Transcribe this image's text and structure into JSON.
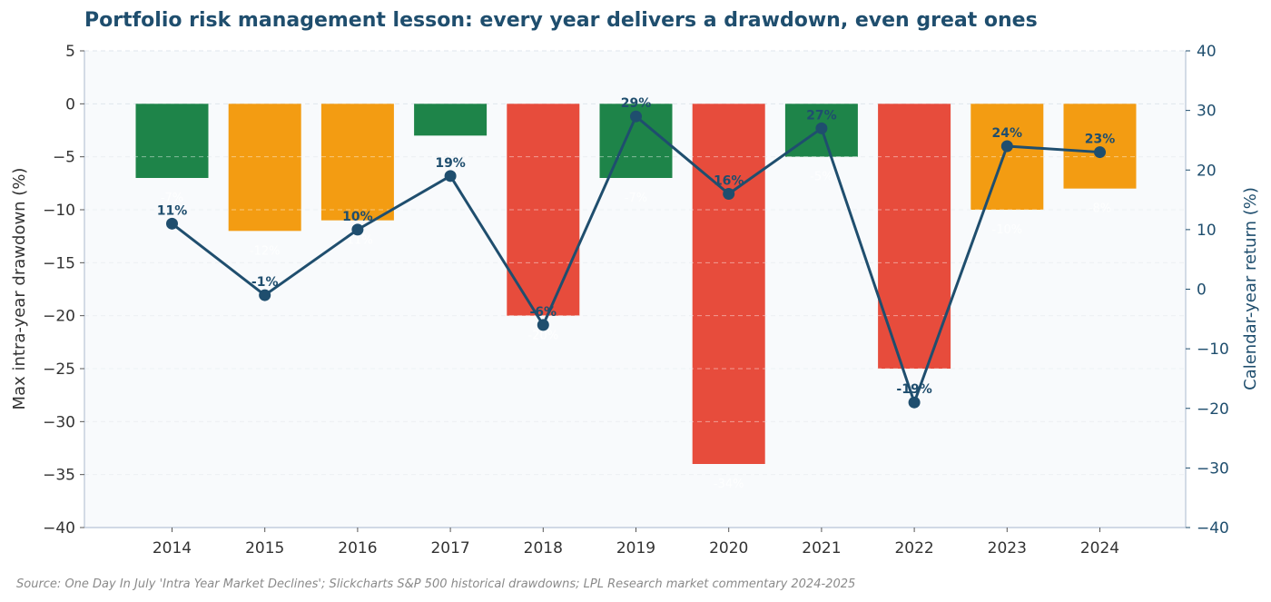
{
  "chart_data": {
    "type": "bar",
    "title": "Portfolio risk management lesson: every year delivers a drawdown, even great ones",
    "categories": [
      "2014",
      "2015",
      "2016",
      "2017",
      "2018",
      "2019",
      "2020",
      "2021",
      "2022",
      "2023",
      "2024"
    ],
    "series": [
      {
        "type": "bar",
        "axis": "left",
        "values": [
          -7,
          -12,
          -11,
          -3,
          -20,
          -7,
          -34,
          -5,
          -25,
          -10,
          -8
        ],
        "colors": [
          "#1e8449",
          "#f39c12",
          "#f39c12",
          "#1e8449",
          "#e74c3c",
          "#1e8449",
          "#e74c3c",
          "#1e8449",
          "#e74c3c",
          "#f39c12",
          "#f39c12"
        ],
        "bar_labels": [
          "-7%",
          "-12%",
          "-11%",
          "-3%",
          "-20%",
          "-7%",
          "-34%",
          "-5%",
          "-25%",
          "-10%",
          "-8%"
        ]
      },
      {
        "type": "line",
        "axis": "right",
        "values": [
          11,
          -1,
          10,
          19,
          -6,
          29,
          16,
          27,
          -19,
          24,
          23
        ],
        "point_labels": [
          "11%",
          "-1%",
          "10%",
          "19%",
          "-6%",
          "29%",
          "16%",
          "27%",
          "-19%",
          "24%",
          "23%"
        ],
        "color": "#1f4e6e"
      }
    ],
    "ylabel": "Max intra-year drawdown (%)",
    "y2label": "Calendar-year return (%)",
    "ylim": [
      -40,
      5
    ],
    "y2lim": [
      -40,
      40
    ],
    "yticks": [
      "5",
      "0",
      "−5",
      "−10",
      "−15",
      "−20",
      "−25",
      "−30",
      "−35",
      "−40"
    ],
    "yticks_values": [
      5,
      0,
      -5,
      -10,
      -15,
      -20,
      -25,
      -30,
      -35,
      -40
    ],
    "y2ticks": [
      "40",
      "30",
      "20",
      "10",
      "0",
      "−10",
      "−20",
      "−30",
      "−40"
    ],
    "y2ticks_values": [
      40,
      30,
      20,
      10,
      0,
      -10,
      -20,
      -30,
      -40
    ],
    "grid": true,
    "source": "Source: One Day In July 'Intra Year Market Declines'; Slickcharts S&P 500 historical drawdowns; LPL Research market commentary 2024-2025"
  }
}
